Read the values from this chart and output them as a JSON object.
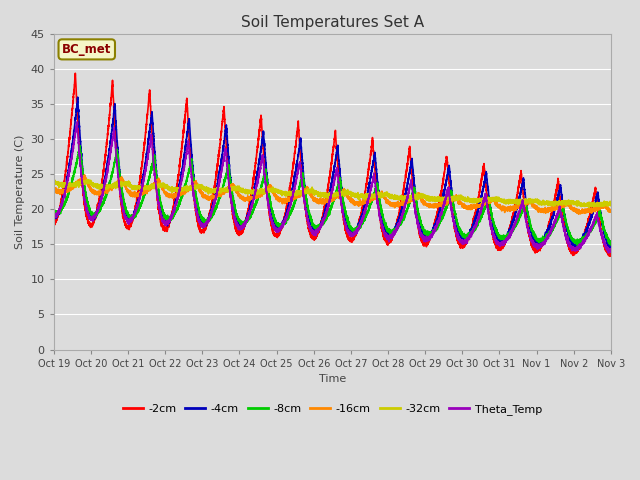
{
  "title": "Soil Temperatures Set A",
  "xlabel": "Time",
  "ylabel": "Soil Temperature (C)",
  "ylim": [
    0,
    45
  ],
  "background_color": "#dcdcdc",
  "plot_bg_color": "#dcdcdc",
  "annotation_text": "BC_met",
  "annotation_color": "#8B0000",
  "annotation_bg": "#f5f5c8",
  "annotation_edge": "#8B8000",
  "xtick_labels": [
    "Oct 19",
    "Oct 20",
    "Oct 21",
    "Oct 22",
    "Oct 23",
    "Oct 24",
    "Oct 25",
    "Oct 26",
    "Oct 27",
    "Oct 28",
    "Oct 29",
    "Oct 30",
    "Oct 31",
    "Nov 1",
    "Nov 2",
    "Nov 3"
  ],
  "series_colors": {
    "-2cm": "#FF0000",
    "-4cm": "#0000BB",
    "-8cm": "#00CC00",
    "-16cm": "#FF8800",
    "-32cm": "#CCCC00",
    "Theta_Temp": "#9900BB"
  },
  "series_lw": 1.2,
  "ytick_positions": [
    0,
    5,
    10,
    15,
    20,
    25,
    30,
    35,
    40,
    45
  ],
  "grid_color": "#ffffff",
  "grid_lw": 0.8,
  "title_fontsize": 11,
  "axis_fontsize": 8,
  "tick_fontsize": 7
}
